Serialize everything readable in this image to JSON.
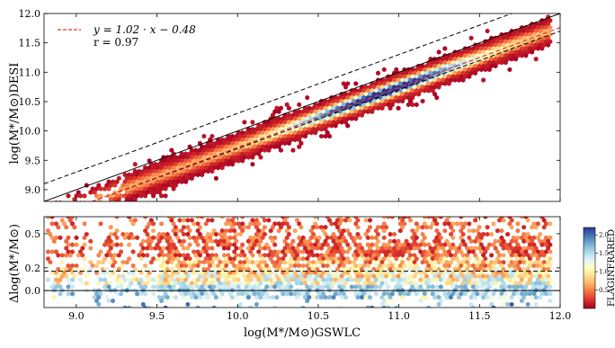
{
  "chart_data": [
    {
      "panel": "top",
      "type": "scatter",
      "subtype": "hexbin density",
      "xlabel": "log(M*/M⊙)GSWLC",
      "ylabel": "log(M*/M⊙)DESI",
      "xlim": [
        8.8,
        12.0
      ],
      "ylim": [
        8.8,
        12.0
      ],
      "x_ticks": [
        "9.0",
        "9.5",
        "10.0",
        "10.5",
        "11.0",
        "11.5",
        "12.0"
      ],
      "y_ticks": [
        "9.0",
        "9.5",
        "10.0",
        "10.5",
        "11.0",
        "11.5",
        "12.0"
      ],
      "legend": {
        "placement": "top-left",
        "entries": [
          "y = 1.02 · x − 0.48"
        ]
      },
      "annotation": "r = 0.97",
      "fit": {
        "slope": 1.02,
        "intercept": -0.48,
        "color": "#e8303a",
        "style": "dashed"
      },
      "one_to_one": {
        "slope": 1.0,
        "intercept": 0.0,
        "color": "#000000",
        "style": "solid"
      },
      "bounds": [
        {
          "slope": 1.0,
          "intercept": 0.3,
          "style": "dashed"
        },
        {
          "slope": 1.0,
          "intercept": -0.3,
          "style": "dashed"
        }
      ],
      "colormap": [
        "#a50026",
        "#d73027",
        "#f46d43",
        "#fdae61",
        "#fee090",
        "#ffffbf",
        "#e0f3f8",
        "#abd9e9",
        "#74add1",
        "#4575b4",
        "#313695"
      ],
      "density_ridge": [
        {
          "x": 9.0,
          "y": 8.86
        },
        {
          "x": 9.5,
          "y": 9.37
        },
        {
          "x": 10.0,
          "y": 9.88
        },
        {
          "x": 10.5,
          "y": 10.39
        },
        {
          "x": 11.0,
          "y": 10.9
        },
        {
          "x": 11.5,
          "y": 11.41
        },
        {
          "x": 11.9,
          "y": 11.82
        }
      ]
    },
    {
      "panel": "bottom",
      "type": "scatter",
      "subtype": "hexbin colored by FLAGINFRARED",
      "xlabel": "log(M*/M⊙)GSWLC",
      "ylabel": "Δlog(M*/M⊙)",
      "xlim": [
        8.8,
        12.0
      ],
      "ylim": [
        -0.15,
        0.65
      ],
      "x_ticks": [
        "9.0",
        "9.5",
        "10.0",
        "10.5",
        "11.0",
        "11.5",
        "12.0"
      ],
      "y_ticks": [
        "0.0",
        "0.2",
        "0.5"
      ],
      "reference_lines": [
        {
          "y": 0.0,
          "style": "solid"
        },
        {
          "y": 0.17,
          "style": "dashed"
        }
      ],
      "colorbar": {
        "label": "FLAGINFRARED",
        "range": [
          0.0,
          2.2
        ],
        "ticks": [
          "0.5",
          "1.0",
          "1.5",
          "2.0"
        ]
      }
    }
  ]
}
